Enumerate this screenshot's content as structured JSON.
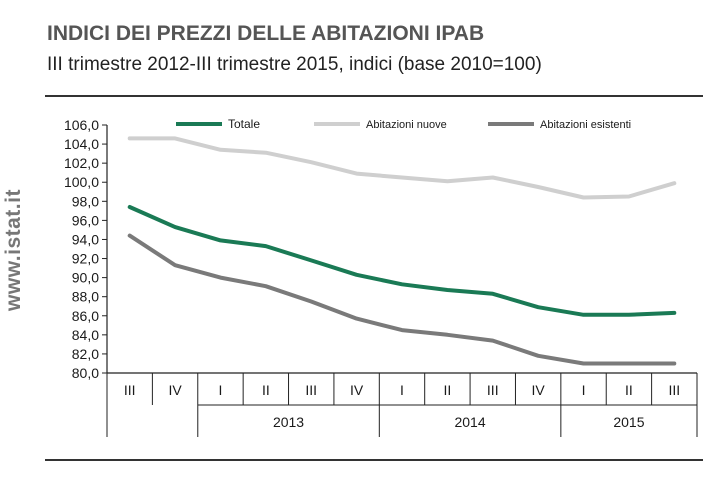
{
  "header": {
    "title": "INDICI DEI PREZZI DELLE ABITAZIONI IPAB",
    "subtitle": "III trimestre 2012-III trimestre 2015, indici (base 2010=100)"
  },
  "watermark": "www.istat.it",
  "colors": {
    "totale": "#1a7a55",
    "nuove": "#cfcfcf",
    "esistenti": "#7a7a7a",
    "axis": "#222222"
  },
  "chart_data": {
    "type": "line",
    "title": "INDICI DEI PREZZI DELLE ABITAZIONI IPAB",
    "subtitle": "III trimestre 2012-III trimestre 2015, indici (base 2010=100)",
    "categories": [
      "III",
      "IV",
      "I",
      "II",
      "III",
      "IV",
      "I",
      "II",
      "III",
      "IV",
      "I",
      "II",
      "III"
    ],
    "year_groups": [
      {
        "label": "",
        "span": 2
      },
      {
        "label": "2013",
        "span": 4
      },
      {
        "label": "2014",
        "span": 4
      },
      {
        "label": "2015",
        "span": 3
      }
    ],
    "ylim": [
      80.0,
      106.0
    ],
    "yticks": [
      "106,0",
      "104,0",
      "102,0",
      "100,0",
      "98,0",
      "96,0",
      "94,0",
      "92,0",
      "90,0",
      "88,0",
      "86,0",
      "84,0",
      "82,0",
      "80,0"
    ],
    "ytick_values": [
      106,
      104,
      102,
      100,
      98,
      96,
      94,
      92,
      90,
      88,
      86,
      84,
      82,
      80
    ],
    "legend_position": "top",
    "series": [
      {
        "name": "Totale",
        "color_key": "totale",
        "values": [
          97.4,
          95.3,
          93.9,
          93.3,
          91.8,
          90.3,
          89.3,
          88.7,
          88.3,
          86.9,
          86.1,
          86.1,
          86.3
        ]
      },
      {
        "name": "Abitazioni nuove",
        "color_key": "nuove",
        "values": [
          104.6,
          104.6,
          103.4,
          103.1,
          102.1,
          100.9,
          100.5,
          100.1,
          100.5,
          99.5,
          98.4,
          98.5,
          99.9
        ]
      },
      {
        "name": "Abitazioni esistenti",
        "color_key": "esistenti",
        "values": [
          94.4,
          91.3,
          90.0,
          89.1,
          87.5,
          85.7,
          84.5,
          84.0,
          83.4,
          81.8,
          81.0,
          81.0,
          81.0
        ]
      }
    ]
  }
}
